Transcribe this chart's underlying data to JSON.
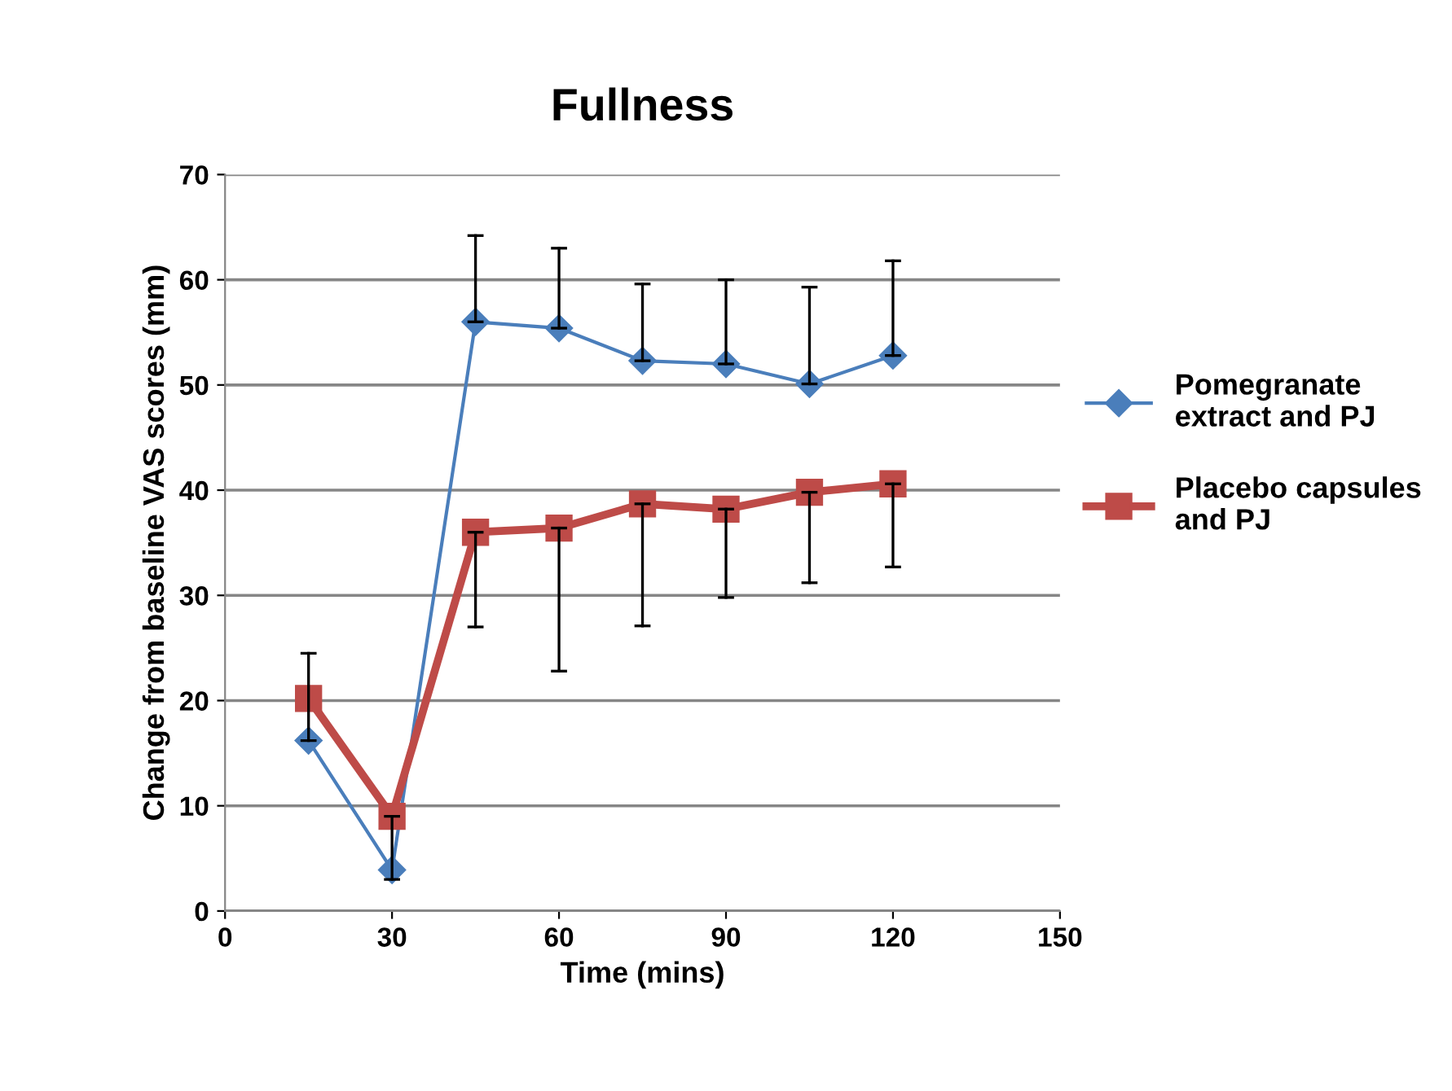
{
  "chart_data": {
    "type": "line",
    "title": "Fullness",
    "xlabel": "Time (mins)",
    "ylabel": "Change from baseline VAS scores (mm)",
    "x": [
      15,
      30,
      45,
      60,
      75,
      90,
      105,
      120
    ],
    "series": [
      {
        "name": "Pomegranate\nextract and PJ",
        "color": "#4a7ebb",
        "marker": "diamond",
        "values": [
          16.2,
          3.9,
          56.0,
          55.4,
          52.3,
          52.0,
          50.1,
          52.8
        ],
        "errors": [
          [
            16.2,
            24.5
          ],
          null,
          [
            56.0,
            64.2
          ],
          [
            55.4,
            63.0
          ],
          [
            52.3,
            59.6
          ],
          [
            52.0,
            60.0
          ],
          [
            50.1,
            59.3
          ],
          [
            52.8,
            61.8
          ]
        ]
      },
      {
        "name": "Placebo capsules\nand PJ",
        "color": "#be4b48",
        "marker": "square",
        "values": [
          20.2,
          9.0,
          36.0,
          36.4,
          38.7,
          38.2,
          39.8,
          40.6
        ],
        "errors": [
          null,
          [
            3.0,
            9.0
          ],
          [
            27.0,
            36.0
          ],
          [
            22.8,
            36.4
          ],
          [
            27.1,
            38.7
          ],
          [
            29.8,
            38.2
          ],
          [
            31.2,
            39.8
          ],
          [
            32.7,
            40.6
          ]
        ]
      }
    ],
    "xlim": [
      0,
      150
    ],
    "xticks": [
      0,
      30,
      60,
      90,
      120,
      150
    ],
    "ylim": [
      0,
      70
    ],
    "yticks": [
      0,
      10,
      20,
      30,
      40,
      50,
      60,
      70
    ],
    "grid": "y",
    "legend": "right"
  }
}
